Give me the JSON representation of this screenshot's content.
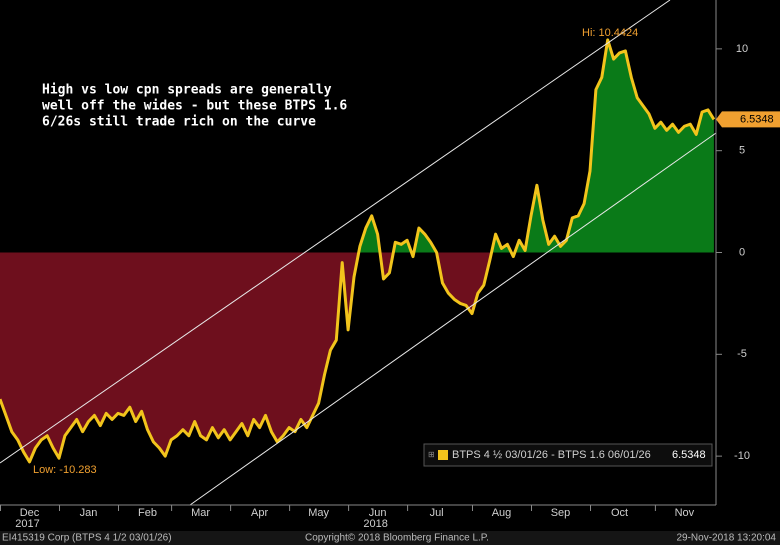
{
  "chart_data": {
    "type": "area_spread",
    "annotation": [
      "High vs low cpn spreads are generally",
      "well off the wides - but these BTPS 1.6",
      "6/26s still trade rich on the curve"
    ],
    "hi_label": "Hi: 10.4424",
    "low_label": "Low: -10.283",
    "categories": [
      null,
      null,
      null,
      null,
      null,
      "Dec",
      null,
      null,
      null,
      null,
      null,
      null,
      null,
      null,
      null,
      "Jan",
      null,
      null,
      null,
      null,
      null,
      null,
      null,
      null,
      null,
      "Feb",
      null,
      null,
      null,
      null,
      null,
      null,
      null,
      null,
      "Mar",
      null,
      null,
      null,
      null,
      null,
      null,
      null,
      null,
      null,
      "Apr",
      null,
      null,
      null,
      null,
      null,
      null,
      null,
      null,
      null,
      "May",
      null,
      null,
      null,
      null,
      null,
      null,
      null,
      null,
      null,
      "Jun",
      null,
      null,
      null,
      null,
      null,
      null,
      null,
      null,
      null,
      "Jul",
      null,
      null,
      null,
      null,
      null,
      null,
      null,
      null,
      null,
      null,
      "Aug",
      null,
      null,
      null,
      null,
      null,
      null,
      null,
      null,
      null,
      "Sep",
      null,
      null,
      null,
      null,
      null,
      null,
      null,
      null,
      null,
      "Oct",
      null,
      null,
      null,
      null,
      null,
      null,
      null,
      null,
      null,
      null,
      "Nov",
      null,
      null,
      null,
      null,
      null
    ],
    "years": [
      "2017",
      "2018"
    ],
    "series": [
      {
        "name": "BTPS 4 ½ 03/01/26 - BTPS 1.6 06/01/26",
        "color": "#f2c41c",
        "last_value_label": "6.5348",
        "values": [
          -7.2,
          -8.0,
          -8.8,
          -9.2,
          -9.8,
          -10.283,
          -9.6,
          -9.2,
          -9.0,
          -9.6,
          -10.1,
          -9.0,
          -8.6,
          -8.2,
          -8.8,
          -8.3,
          -8.0,
          -8.5,
          -7.9,
          -8.2,
          -7.9,
          -8.0,
          -7.6,
          -8.3,
          -7.8,
          -8.7,
          -9.3,
          -9.6,
          -10.0,
          -9.2,
          -9.0,
          -8.7,
          -9.0,
          -8.3,
          -9.0,
          -9.2,
          -8.6,
          -9.1,
          -8.7,
          -9.2,
          -8.8,
          -8.4,
          -9.0,
          -8.2,
          -8.6,
          -8.0,
          -8.8,
          -9.3,
          -9.0,
          -8.6,
          -8.8,
          -8.2,
          -8.6,
          -8.0,
          -7.4,
          -6.0,
          -4.8,
          -4.3,
          -0.5,
          -3.8,
          -1.2,
          0.3,
          1.2,
          1.8,
          0.9,
          -1.3,
          -1.0,
          0.5,
          0.4,
          0.6,
          -0.2,
          1.2,
          0.9,
          0.5,
          0.0,
          -1.5,
          -2.0,
          -2.3,
          -2.5,
          -2.6,
          -3.0,
          -2.0,
          -1.6,
          -0.4,
          0.9,
          0.2,
          0.4,
          -0.2,
          0.6,
          0.1,
          1.8,
          3.3,
          1.6,
          0.4,
          0.8,
          0.3,
          0.6,
          1.7,
          1.8,
          2.4,
          4.0,
          8.0,
          8.6,
          10.4424,
          9.5,
          9.8,
          9.9,
          8.6,
          7.6,
          7.2,
          6.8,
          6.1,
          6.4,
          6.0,
          6.3,
          5.9,
          6.2,
          6.3,
          5.8,
          6.9,
          7.0,
          6.5348
        ]
      }
    ],
    "positive_color": "#0a7a18",
    "negative_color": "#6e0f1d",
    "ylim": [
      -12.4,
      12.4
    ],
    "yticks": [
      -10,
      -5,
      0,
      5,
      10
    ],
    "footer": [
      "EI415319 Corp (BTPS 4 1/2 03/01/26)",
      "Copyright© 2018 Bloomberg Finance L.P.",
      "29-Nov-2018 13:20:04"
    ]
  }
}
